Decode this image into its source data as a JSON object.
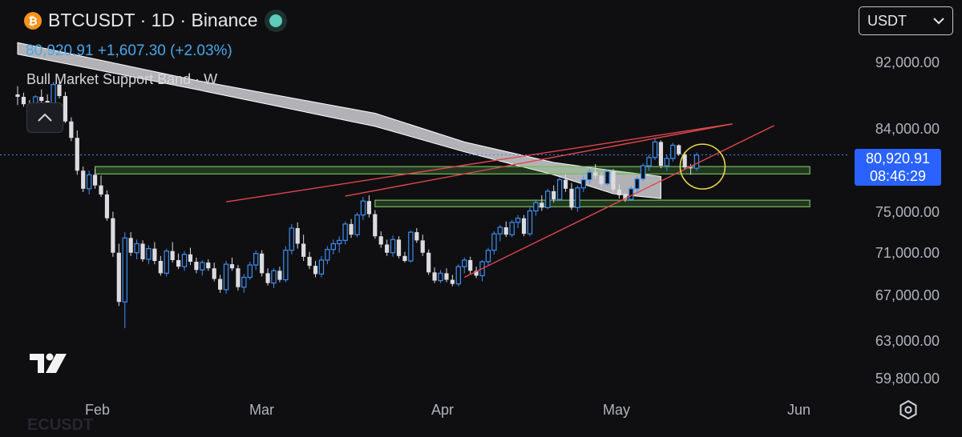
{
  "header": {
    "coin_symbol": "₿",
    "title": "BTCUSDT · 1D · Binance",
    "price_line": "80,920.91  +1,607.30 (+2.03%)",
    "indicator": "Bull Market Support Band · W",
    "status_color": "#5ecbb8"
  },
  "currency_button": {
    "label": "USDT"
  },
  "price_tag": {
    "price": "80,920.91",
    "countdown": "08:46:29"
  },
  "y_axis": {
    "labels": [
      "92,000.00",
      "84,000.00",
      "75,000.00",
      "71,000.00",
      "67,000.00",
      "63,000.00",
      "59,800.00"
    ]
  },
  "x_axis": {
    "labels": [
      "Feb",
      "Mar",
      "Apr",
      "May",
      "Jun"
    ]
  },
  "partial_label": "ECUSDT",
  "colors": {
    "up": "#3d8ff2",
    "down": "#dcdce0",
    "trendline": "#e0474c",
    "zone": "#6fbf58",
    "highlight": "#e8d64a",
    "price_tag": "#2962ff"
  },
  "icons": [
    "bitcoin-icon",
    "collapse-chevron-icon",
    "dropdown-chevron-icon",
    "tradingview-logo-icon",
    "settings-icon"
  ],
  "chart_data": {
    "type": "candlestick",
    "symbol": "BTCUSDT",
    "interval": "1D",
    "exchange": "Binance",
    "last_price": 80920.91,
    "change": 1607.3,
    "change_pct": 2.03,
    "start_date": "2026-01-21",
    "ohlc": [
      [
        88300,
        89300,
        87000,
        88000
      ],
      [
        88000,
        88500,
        86800,
        87100
      ],
      [
        87100,
        87600,
        86200,
        86800
      ],
      [
        86800,
        88200,
        85900,
        88000
      ],
      [
        88000,
        88900,
        87200,
        87500
      ],
      [
        87500,
        88300,
        86100,
        86300
      ],
      [
        86300,
        89800,
        86000,
        89500
      ],
      [
        89500,
        90200,
        87800,
        88100
      ],
      [
        88100,
        88600,
        84800,
        85000
      ],
      [
        85000,
        85500,
        82600,
        83000
      ],
      [
        83000,
        83900,
        78500,
        79000
      ],
      [
        79000,
        79500,
        76400,
        76800
      ],
      [
        76800,
        79000,
        76100,
        78500
      ],
      [
        78500,
        79200,
        76800,
        77200
      ],
      [
        77200,
        78400,
        75800,
        76100
      ],
      [
        76100,
        76600,
        72900,
        73200
      ],
      [
        73200,
        74000,
        68500,
        69000
      ],
      [
        69000,
        70100,
        62500,
        63000
      ],
      [
        63000,
        71500,
        59800,
        70800
      ],
      [
        70800,
        71500,
        68600,
        69000
      ],
      [
        69000,
        70600,
        68200,
        70100
      ],
      [
        70100,
        70500,
        67900,
        68200
      ],
      [
        68200,
        69900,
        67600,
        69500
      ],
      [
        69500,
        70300,
        67600,
        68000
      ],
      [
        68000,
        68600,
        66200,
        66500
      ],
      [
        66500,
        69500,
        66100,
        69200
      ],
      [
        69200,
        70300,
        67800,
        68100
      ],
      [
        68100,
        68900,
        67000,
        67300
      ],
      [
        67300,
        69200,
        66800,
        68800
      ],
      [
        68800,
        69600,
        67500,
        67900
      ],
      [
        67900,
        68400,
        66500,
        66900
      ],
      [
        66900,
        68100,
        66200,
        67800
      ],
      [
        67800,
        68200,
        66800,
        67100
      ],
      [
        67100,
        67800,
        65500,
        65800
      ],
      [
        65800,
        66300,
        64100,
        64500
      ],
      [
        64500,
        68000,
        64000,
        67600
      ],
      [
        67600,
        68400,
        66800,
        67100
      ],
      [
        67100,
        67500,
        64400,
        64800
      ],
      [
        64800,
        66400,
        64100,
        66000
      ],
      [
        66000,
        67900,
        65700,
        67500
      ],
      [
        67500,
        69300,
        66900,
        68900
      ],
      [
        68900,
        69300,
        66100,
        66500
      ],
      [
        66500,
        67100,
        65000,
        65300
      ],
      [
        65300,
        67100,
        64700,
        66800
      ],
      [
        66800,
        67300,
        65400,
        65700
      ],
      [
        65700,
        69800,
        65400,
        69300
      ],
      [
        69300,
        72500,
        68800,
        72000
      ],
      [
        72000,
        72700,
        69500,
        70100
      ],
      [
        70100,
        71200,
        68000,
        68500
      ],
      [
        68500,
        69100,
        67000,
        67400
      ],
      [
        67400,
        68000,
        66000,
        66400
      ],
      [
        66400,
        68600,
        66000,
        68100
      ],
      [
        68100,
        69800,
        67600,
        69400
      ],
      [
        69400,
        70600,
        68800,
        70100
      ],
      [
        70100,
        71000,
        69000,
        70500
      ],
      [
        70500,
        72800,
        70000,
        72500
      ],
      [
        72500,
        73100,
        70800,
        71200
      ],
      [
        71200,
        73900,
        70900,
        73600
      ],
      [
        73600,
        75800,
        73000,
        75300
      ],
      [
        75300,
        76000,
        73300,
        73700
      ],
      [
        73700,
        74200,
        70700,
        71000
      ],
      [
        71000,
        71600,
        69600,
        70000
      ],
      [
        70000,
        70600,
        68600,
        69000
      ],
      [
        69000,
        71100,
        68500,
        70600
      ],
      [
        70600,
        71000,
        68300,
        68600
      ],
      [
        68600,
        69100,
        67800,
        68000
      ],
      [
        68000,
        71700,
        67800,
        71500
      ],
      [
        71500,
        72000,
        70200,
        70500
      ],
      [
        70500,
        71200,
        68600,
        69000
      ],
      [
        69000,
        69400,
        66300,
        66600
      ],
      [
        66600,
        67200,
        65300,
        65600
      ],
      [
        65600,
        66900,
        65300,
        66500
      ],
      [
        66500,
        67100,
        65400,
        65700
      ],
      [
        65700,
        66300,
        64900,
        65200
      ],
      [
        65200,
        67600,
        64900,
        67300
      ],
      [
        67300,
        68400,
        66500,
        68100
      ],
      [
        68100,
        68500,
        66400,
        66800
      ],
      [
        66800,
        67300,
        65900,
        66200
      ],
      [
        66200,
        68100,
        65500,
        67900
      ],
      [
        67900,
        69600,
        67500,
        69300
      ],
      [
        69300,
        71600,
        68800,
        71300
      ],
      [
        71300,
        72400,
        70400,
        72100
      ],
      [
        72100,
        72800,
        70900,
        71200
      ],
      [
        71200,
        73000,
        70900,
        72700
      ],
      [
        72700,
        73600,
        72000,
        73200
      ],
      [
        73200,
        73600,
        71000,
        71300
      ],
      [
        71300,
        74500,
        71000,
        74100
      ],
      [
        74100,
        75500,
        73500,
        75100
      ],
      [
        75100,
        76000,
        74100,
        74500
      ],
      [
        74500,
        76800,
        74300,
        76500
      ],
      [
        76500,
        77200,
        75100,
        75500
      ],
      [
        75500,
        78200,
        75300,
        77900
      ],
      [
        77900,
        78600,
        76400,
        76800
      ],
      [
        76800,
        77500,
        74200,
        74500
      ],
      [
        74500,
        77200,
        74000,
        76900
      ],
      [
        76900,
        78400,
        76400,
        77900
      ],
      [
        77900,
        79200,
        77400,
        78800
      ],
      [
        78800,
        79800,
        78000,
        78400
      ],
      [
        78400,
        78800,
        77100,
        77400
      ],
      [
        77400,
        79100,
        77200,
        78900
      ],
      [
        78900,
        79200,
        76400,
        76700
      ],
      [
        76700,
        77300,
        75600,
        76000
      ],
      [
        76000,
        76300,
        75200,
        75500
      ],
      [
        75500,
        77100,
        75300,
        76800
      ],
      [
        76800,
        78300,
        76400,
        78000
      ],
      [
        78000,
        79900,
        77700,
        79600
      ],
      [
        79600,
        80900,
        79000,
        80600
      ],
      [
        80600,
        82900,
        80300,
        82500
      ],
      [
        82500,
        82700,
        79300,
        79600
      ],
      [
        79600,
        80900,
        79000,
        80500
      ],
      [
        80500,
        82400,
        80100,
        82100
      ],
      [
        82100,
        82200,
        80800,
        81000
      ],
      [
        81000,
        81300,
        79100,
        79400
      ],
      [
        79400,
        79800,
        78500,
        79300
      ],
      [
        79300,
        81200,
        79000,
        80920
      ]
    ],
    "support_band": {
      "upper": [
        [
          0,
          94600
        ],
        [
          30,
          90000
        ],
        [
          60,
          86000
        ],
        [
          75,
          82500
        ],
        [
          90,
          80000
        ],
        [
          100,
          79000
        ],
        [
          108,
          78300
        ]
      ],
      "lower": [
        [
          0,
          93200
        ],
        [
          30,
          88900
        ],
        [
          60,
          84400
        ],
        [
          75,
          81300
        ],
        [
          90,
          78500
        ],
        [
          100,
          76200
        ],
        [
          108,
          75600
        ]
      ]
    },
    "trendlines": [
      {
        "name": "upper-resistance",
        "points": [
          [
            35,
            75200
          ],
          [
            120,
            84700
          ]
        ]
      },
      {
        "name": "upper-resistance-2",
        "points": [
          [
            55,
            75900
          ],
          [
            120,
            84700
          ]
        ]
      },
      {
        "name": "lower-support",
        "points": [
          [
            75,
            66000
          ],
          [
            127,
            84500
          ]
        ]
      }
    ],
    "zones": [
      {
        "name": "support-zone-upper",
        "from_day": 13,
        "to_day": 133,
        "low": 78600,
        "high": 79500
      },
      {
        "name": "support-zone-lower",
        "from_day": 60,
        "to_day": 133,
        "low": 74600,
        "high": 75400
      }
    ],
    "highlight": {
      "day": 115,
      "price": 79500
    },
    "current_price_line": 80920.91,
    "y_ticks": [
      92000,
      84000,
      75000,
      71000,
      67000,
      63000,
      59800
    ],
    "x_ticks": [
      {
        "label": "Feb",
        "day": 11
      },
      {
        "label": "Mar",
        "day": 39
      },
      {
        "label": "Apr",
        "day": 70
      },
      {
        "label": "May",
        "day": 100
      },
      {
        "label": "Jun",
        "day": 131
      }
    ]
  }
}
